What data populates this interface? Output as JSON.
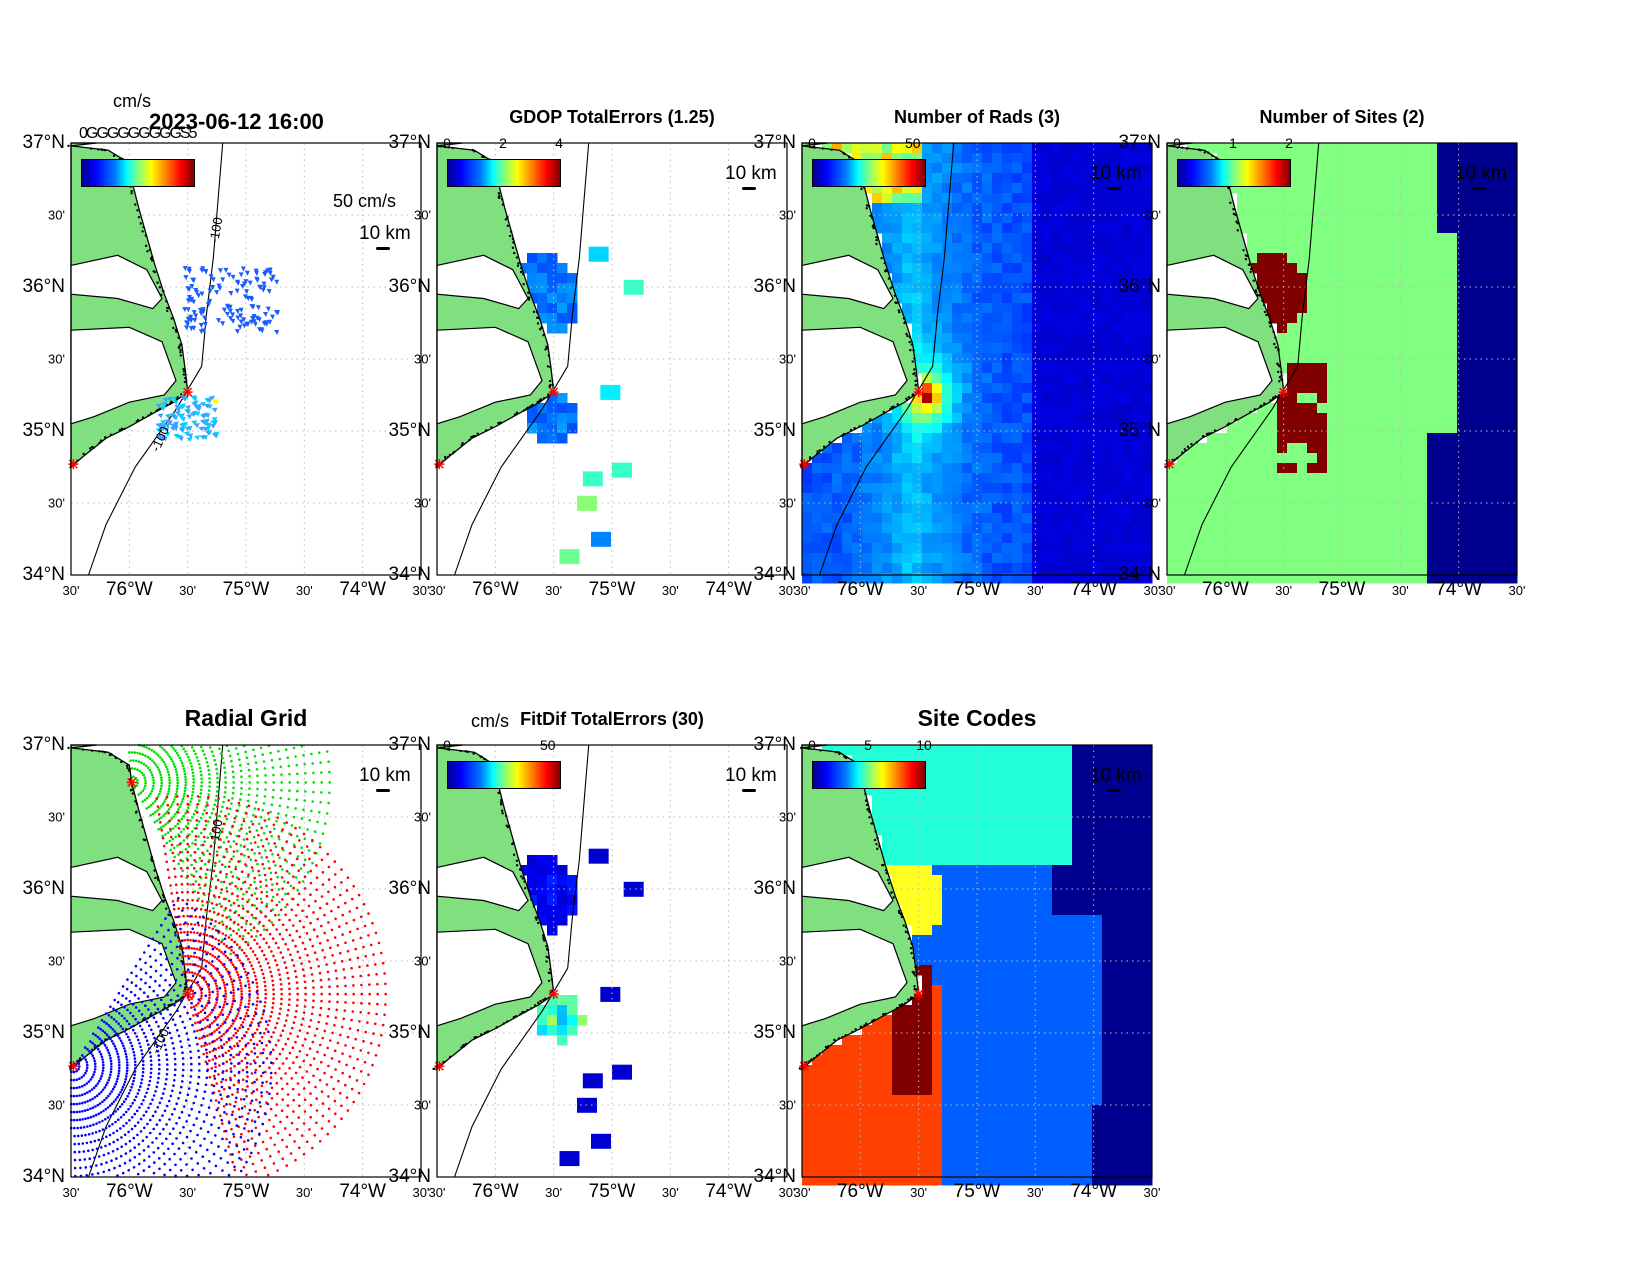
{
  "figure": {
    "panels": [
      {
        "id": "p1",
        "title": "",
        "timestamp": "2023-06-12 16:00",
        "units": "cm/s",
        "overlap_label": "0GGGGGGGGGS5",
        "cbar": null,
        "ref_vector_label": "50 cm/s",
        "scale_label": "10 km",
        "mode": "vectors",
        "contour_labels": [
          "-100",
          "-100"
        ]
      },
      {
        "id": "p2",
        "title": "GDOP TotalErrors (1.25)",
        "cbar_ticks": [
          "0",
          "2",
          "4"
        ],
        "scale_label": "10 km",
        "mode": "gdop"
      },
      {
        "id": "p3",
        "title": "Number of Rads (3)",
        "cbar_ticks": [
          "0",
          "50"
        ],
        "scale_label": "10 km",
        "mode": "rads"
      },
      {
        "id": "p4",
        "title": "Number of Sites (2)",
        "cbar_ticks": [
          "0",
          "1",
          "2"
        ],
        "scale_label": "10 km",
        "mode": "sites"
      },
      {
        "id": "p5",
        "title": "Radial Grid",
        "scale_label": "10 km",
        "mode": "radial",
        "contour_labels": [
          "-100",
          "-100"
        ]
      },
      {
        "id": "p6",
        "title": "FitDif TotalErrors (30)",
        "units": "cm/s",
        "cbar_ticks": [
          "0",
          "50"
        ],
        "scale_label": "10 km",
        "mode": "fitdif"
      },
      {
        "id": "p7",
        "title": "Site Codes",
        "cbar_ticks": [
          "0",
          "5",
          "10"
        ],
        "scale_label": "10 km",
        "mode": "codes"
      }
    ],
    "axes": {
      "lat_labels": [
        "37°N",
        "30'",
        "36°N",
        "30'",
        "35°N",
        "30'",
        "34°N"
      ],
      "lon_labels": [
        "30'",
        "76°W",
        "30'",
        "75°W",
        "30'",
        "74°W",
        "30'"
      ]
    },
    "colors": {
      "land": "#80e080",
      "ocean": "#ffffff",
      "site_marker": "#ff0000",
      "radial_site_north": "#00e000",
      "radial_site_mid": "#ff0000",
      "radial_site_south": "#0000ff",
      "grid": "#bbbbbb"
    },
    "sites": [
      {
        "name": "north",
        "lon": -75.98,
        "lat": 36.74
      },
      {
        "name": "mid",
        "lon": -75.5,
        "lat": 35.27
      },
      {
        "name": "south",
        "lon": -76.48,
        "lat": 34.77
      }
    ],
    "extent": {
      "lon_min": -76.5,
      "lon_max": -73.5,
      "lat_min": 34.0,
      "lat_max": 37.0
    }
  }
}
